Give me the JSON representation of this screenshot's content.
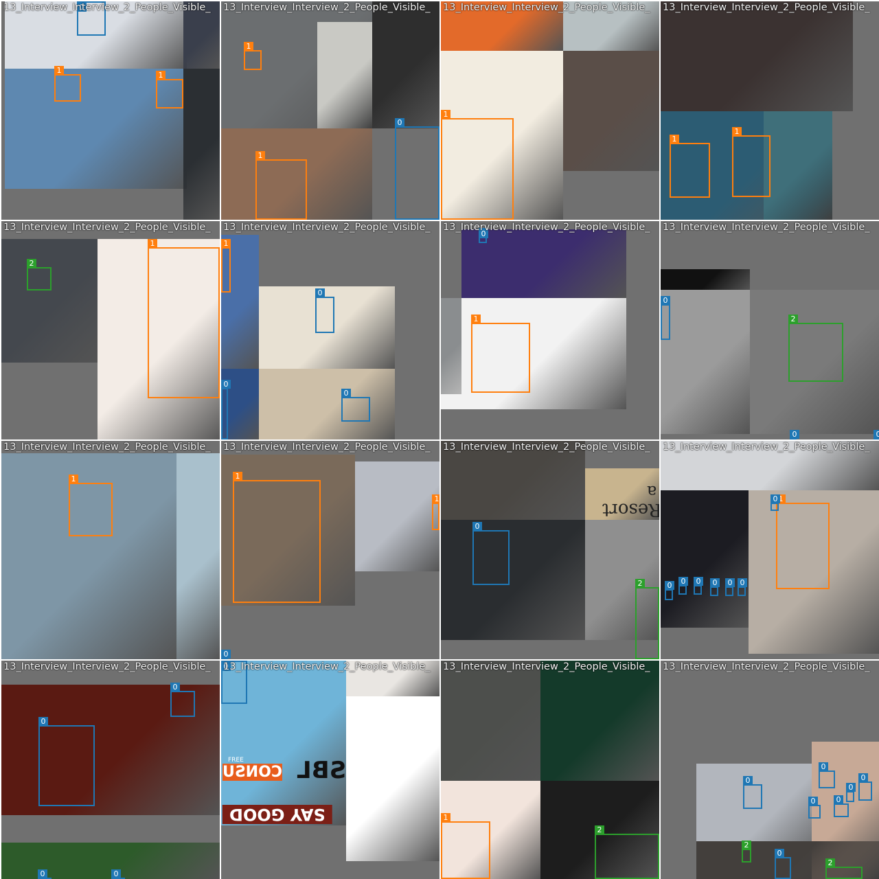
{
  "colors": {
    "class_0": "#1f77b4",
    "class_1": "#ff7f0e",
    "class_2": "#2ca02c",
    "pad_gray": "#707070",
    "grid_line": "#ffffff"
  },
  "tiles": [
    {
      "title": "13_Interview_Interview_2_People_Visible_",
      "photos": [
        {
          "color": "#d9dde3"
        },
        {
          "color": "#3a3f4c"
        },
        {
          "color": "#5e88b0"
        },
        {
          "color": "#2b2f33"
        }
      ],
      "boxes": [
        {
          "label": "1",
          "cls": 1
        },
        {
          "label": "1",
          "cls": 1
        },
        {
          "label": "0",
          "cls": 0
        }
      ]
    },
    {
      "title": "13_Interview_Interview_2_People_Visible_",
      "photos": [
        {
          "color": "#6b6e70"
        },
        {
          "color": "#c9c9c4"
        },
        {
          "color": "#2e2e2e"
        },
        {
          "color": "#8d6b55"
        }
      ],
      "boxes": [
        {
          "label": "1",
          "cls": 1
        },
        {
          "label": "1",
          "cls": 1
        },
        {
          "label": "0",
          "cls": 0
        }
      ]
    },
    {
      "title": "13_Interview_Interview_2_People_Visible_",
      "photos": [
        {
          "color": "#e36a2a"
        },
        {
          "color": "#b7c0c2"
        },
        {
          "color": "#f2ece0"
        },
        {
          "color": "#5a4e48"
        }
      ],
      "boxes": [
        {
          "label": "1",
          "cls": 1
        }
      ]
    },
    {
      "title": "13_Interview_Interview_2_People_Visible_",
      "photos": [
        {
          "color": "#3b3231"
        },
        {
          "color": "#2c5c73"
        },
        {
          "color": "#3f6f7a"
        }
      ],
      "boxes": [
        {
          "label": "1",
          "cls": 1
        },
        {
          "label": "1",
          "cls": 1
        }
      ]
    },
    {
      "title": "13_Interview_Interview_2_People_Visible_",
      "photos": [
        {
          "color": "#44484e"
        },
        {
          "color": "#f3ece6"
        }
      ],
      "boxes": [
        {
          "label": "2",
          "cls": 2
        },
        {
          "label": "1",
          "cls": 1
        }
      ]
    },
    {
      "title": "13_Interview_Interview_2_People_Visible_",
      "photos": [
        {
          "color": "#4a6fa8"
        },
        {
          "color": "#e8e1d3"
        },
        {
          "color": "#2d4f86"
        },
        {
          "color": "#cdbfa8"
        }
      ],
      "boxes": [
        {
          "label": "1",
          "cls": 1
        },
        {
          "label": "0",
          "cls": 0
        },
        {
          "label": "0",
          "cls": 0
        },
        {
          "label": "0",
          "cls": 0
        }
      ]
    },
    {
      "title": "13_Interview_Interview_2_People_Visible_",
      "photos": [
        {
          "color": "#3c2d6e"
        },
        {
          "color": "#f2f2f2"
        },
        {
          "color": "#8a8d8f"
        }
      ],
      "boxes": [
        {
          "label": "0",
          "cls": 0
        },
        {
          "label": "1",
          "cls": 1
        }
      ]
    },
    {
      "title": "13_Interview_Interview_2_People_Visible_",
      "photos": [
        {
          "color": "#111111"
        },
        {
          "color": "#9b9b9b"
        },
        {
          "color": "#7a7a7a"
        }
      ],
      "boxes": [
        {
          "label": "0",
          "cls": 0
        },
        {
          "label": "2",
          "cls": 2
        },
        {
          "label": "0",
          "cls": 0
        },
        {
          "label": "0",
          "cls": 0
        }
      ]
    },
    {
      "title": "13_Interview_Interview_2_People_Visible_",
      "photos": [
        {
          "color": "#7e96a6"
        },
        {
          "color": "#a9c0cc"
        }
      ],
      "boxes": [
        {
          "label": "1",
          "cls": 1
        }
      ]
    },
    {
      "title": "13_Interview_Interview_2_People_Visible_",
      "photos": [
        {
          "color": "#7a6a5a"
        },
        {
          "color": "#b8bcc4"
        }
      ],
      "boxes": [
        {
          "label": "1",
          "cls": 1
        },
        {
          "label": "1",
          "cls": 1
        },
        {
          "label": "0",
          "cls": 0
        }
      ]
    },
    {
      "title": "13_Interview_Interview_2_People_Visible_",
      "photos": [
        {
          "color": "#4a4743"
        },
        {
          "color": "#c8b48e"
        },
        {
          "color": "#2a2d30"
        },
        {
          "color": "#8f8f8f"
        }
      ],
      "boxes": [
        {
          "label": "0",
          "cls": 0
        },
        {
          "label": "2",
          "cls": 2
        }
      ],
      "texts": {
        "resort": "Resort",
        "resort_top": "a"
      }
    },
    {
      "title": "13_Interview_Interview_2_People_Visible_",
      "photos": [
        {
          "color": "#d3d5d8"
        },
        {
          "color": "#1c1c22"
        },
        {
          "color": "#b7aea4"
        }
      ],
      "boxes": [
        {
          "label": "1",
          "cls": 1
        },
        {
          "label": "0",
          "cls": 0
        },
        {
          "label": "0",
          "cls": 0
        },
        {
          "label": "0",
          "cls": 0
        },
        {
          "label": "0",
          "cls": 0
        },
        {
          "label": "0",
          "cls": 0
        },
        {
          "label": "0",
          "cls": 0
        },
        {
          "label": "0",
          "cls": 0
        }
      ]
    },
    {
      "title": "13_Interview_Interview_2_People_Visible_",
      "photos": [
        {
          "color": "#5a1a12"
        },
        {
          "color": "#2d5b2a"
        }
      ],
      "boxes": [
        {
          "label": "0",
          "cls": 0
        },
        {
          "label": "0",
          "cls": 0
        },
        {
          "label": "0",
          "cls": 0
        },
        {
          "label": "0",
          "cls": 0
        }
      ]
    },
    {
      "title": "13_Interview_Interview_2_People_Visible_",
      "photos": [
        {
          "color": "#6fb4d8"
        },
        {
          "color": "#e9e6e2"
        },
        {
          "color": "#ffffff"
        }
      ],
      "boxes": [
        {
          "label": "0",
          "cls": 0
        }
      ],
      "texts": {
        "sbl": "SBL",
        "consu": "CONSU",
        "say_good": "SAY GOOD",
        "free": "FREE"
      }
    },
    {
      "title": "13_Interview_Interview_2_People_Visible_",
      "photos": [
        {
          "color": "#4d4f4c"
        },
        {
          "color": "#143a2a"
        },
        {
          "color": "#f2e4dc"
        },
        {
          "color": "#1d1d1d"
        }
      ],
      "boxes": [
        {
          "label": "1",
          "cls": 1
        },
        {
          "label": "2",
          "cls": 2
        }
      ]
    },
    {
      "title": "13_Interview_Interview_2_People_Visible_",
      "photos": [
        {
          "color": "#b2b6bd"
        },
        {
          "color": "#c7a996"
        },
        {
          "color": "#433f3c"
        }
      ],
      "boxes": [
        {
          "label": "0",
          "cls": 0
        },
        {
          "label": "0",
          "cls": 0
        },
        {
          "label": "0",
          "cls": 0
        },
        {
          "label": "0",
          "cls": 0
        },
        {
          "label": "0",
          "cls": 0
        },
        {
          "label": "0",
          "cls": 0
        },
        {
          "label": "2",
          "cls": 2
        },
        {
          "label": "0",
          "cls": 0
        },
        {
          "label": "2",
          "cls": 2
        }
      ]
    }
  ]
}
